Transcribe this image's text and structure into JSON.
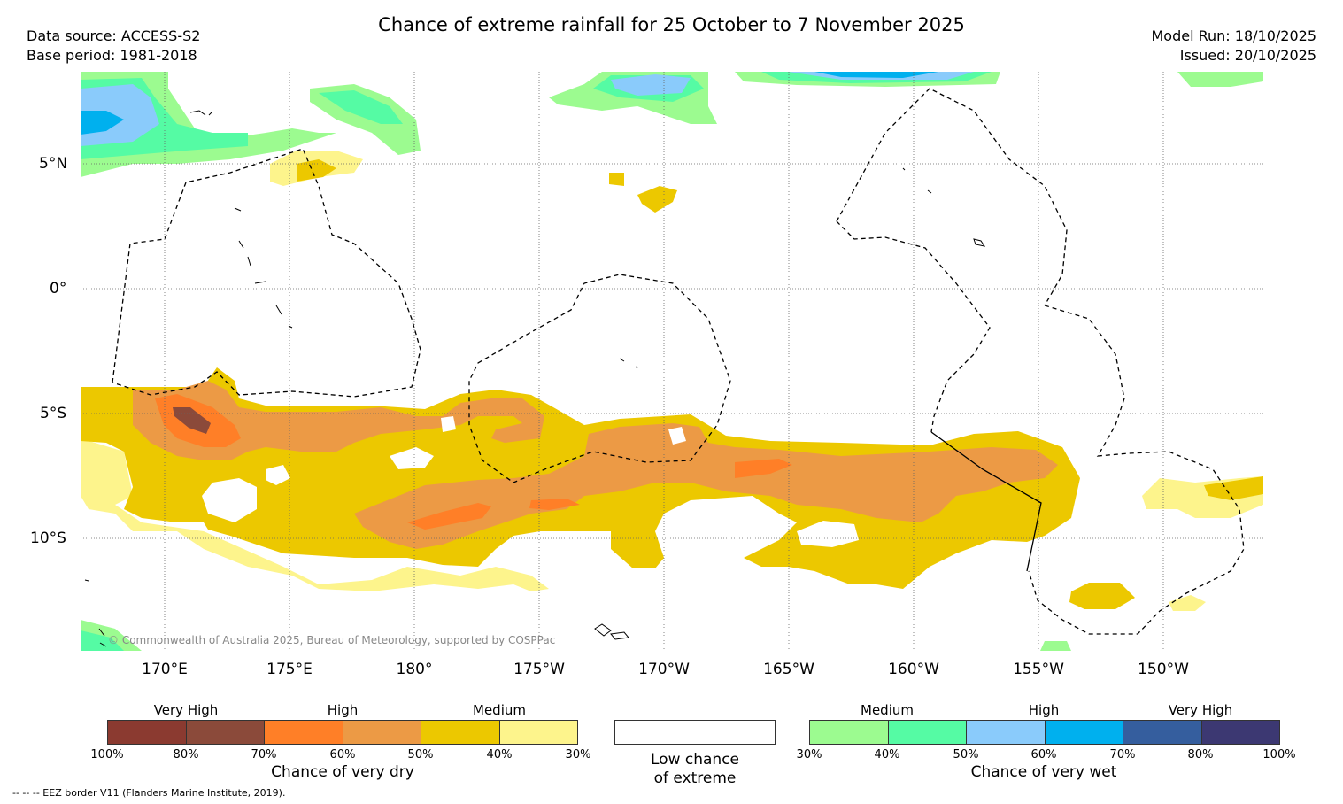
{
  "title": "Chance of extreme rainfall for 25 October to 7 November 2025",
  "data_source": "Data source: ACCESS-S2",
  "base_period": "Base period: 1981-2018",
  "model_run": "Model Run: 18/10/2025",
  "issued": "Issued: 20/10/2025",
  "lat_labels": [
    "5°N",
    "0°",
    "5°S",
    "10°S"
  ],
  "lon_labels": [
    "170°E",
    "175°E",
    "180°",
    "175°W",
    "170°W",
    "165°W",
    "160°W",
    "155°W",
    "150°W"
  ],
  "credit": "© Commonwealth of Australia 2025, Bureau of Meteorology, supported by COSPPac",
  "dry_legend": {
    "levels": [
      "Very High",
      "High",
      "Medium"
    ],
    "ticks": [
      "100%",
      "80%",
      "70%",
      "60%",
      "50%",
      "40%",
      "30%"
    ],
    "colors": [
      "#8b3a30",
      "#8b4a3a",
      "#ff7f27",
      "#ec9a45",
      "#ecc800",
      "#fdf48c"
    ],
    "caption": "Chance of very dry"
  },
  "low_legend": {
    "caption_line1": "Low chance",
    "caption_line2": "of extreme"
  },
  "wet_legend": {
    "levels": [
      "Medium",
      "High",
      "Very High"
    ],
    "ticks": [
      "30%",
      "40%",
      "50%",
      "60%",
      "70%",
      "80%",
      "100%"
    ],
    "colors": [
      "#9cfb90",
      "#55fba4",
      "#8acbfb",
      "#00b0ee",
      "#355e9e",
      "#3c3872"
    ],
    "caption": "Chance of very wet"
  },
  "footnote": "-- -- -- EEZ border V11 (Flanders Marine Institute, 2019).",
  "colors": {
    "dry_yellow_light": "#fdf48c",
    "dry_yellow": "#ecc800",
    "dry_orange_light": "#ec9a45",
    "dry_orange": "#ff7f27",
    "dry_brown": "#8b4a3a",
    "wet_green_light": "#9cfb90",
    "wet_green": "#55fba4",
    "wet_blue_light": "#8acbfb",
    "wet_blue": "#00b0ee",
    "wet_navy": "#355e9e"
  }
}
